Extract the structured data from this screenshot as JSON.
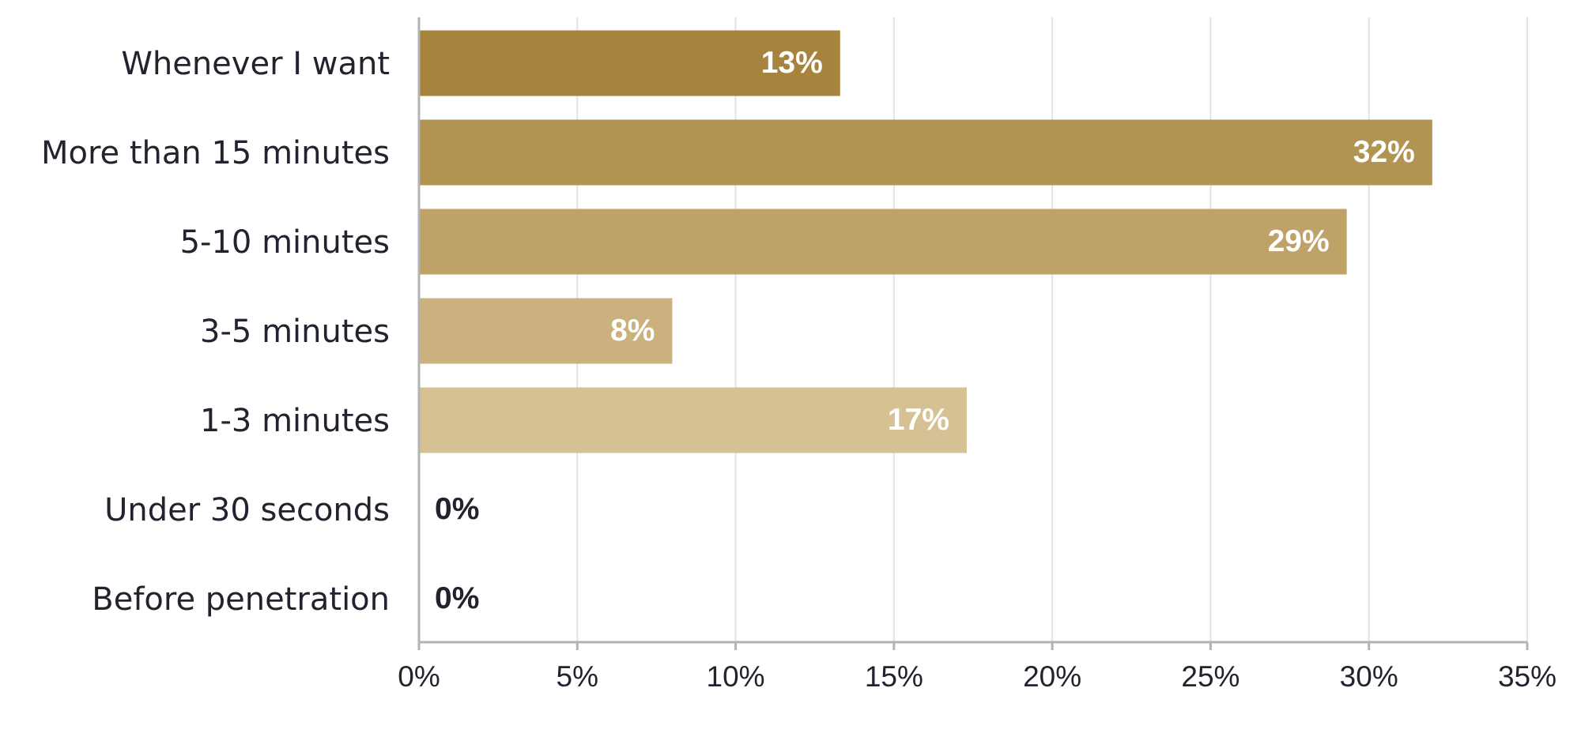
{
  "chart_data": {
    "type": "bar",
    "orientation": "horizontal",
    "categories": [
      "Whenever I want",
      "More than 15 minutes",
      "5-10 minutes",
      "3-5 minutes",
      "1-3 minutes",
      "Under 30 seconds",
      "Before penetration"
    ],
    "values": [
      13.3,
      32.0,
      29.3,
      8.0,
      17.3,
      0,
      0
    ],
    "value_labels": [
      "13%",
      "32%",
      "29%",
      "8%",
      "17%",
      "0%",
      "0%"
    ],
    "bar_colors": [
      "#a6843e",
      "#b19352",
      "#bfa268",
      "#cab17d",
      "#d6c194",
      "#d6c194",
      "#d6c194"
    ],
    "label_inside_color": "#ffffff",
    "label_outside_color": "#23232f",
    "xlim": [
      0,
      35
    ],
    "xticks": [
      0,
      5,
      10,
      15,
      20,
      25,
      30,
      35
    ],
    "xtick_labels": [
      "0%",
      "5%",
      "10%",
      "15%",
      "20%",
      "25%",
      "30%",
      "35%"
    ],
    "grid": true,
    "title": "",
    "xlabel": "",
    "ylabel": ""
  }
}
